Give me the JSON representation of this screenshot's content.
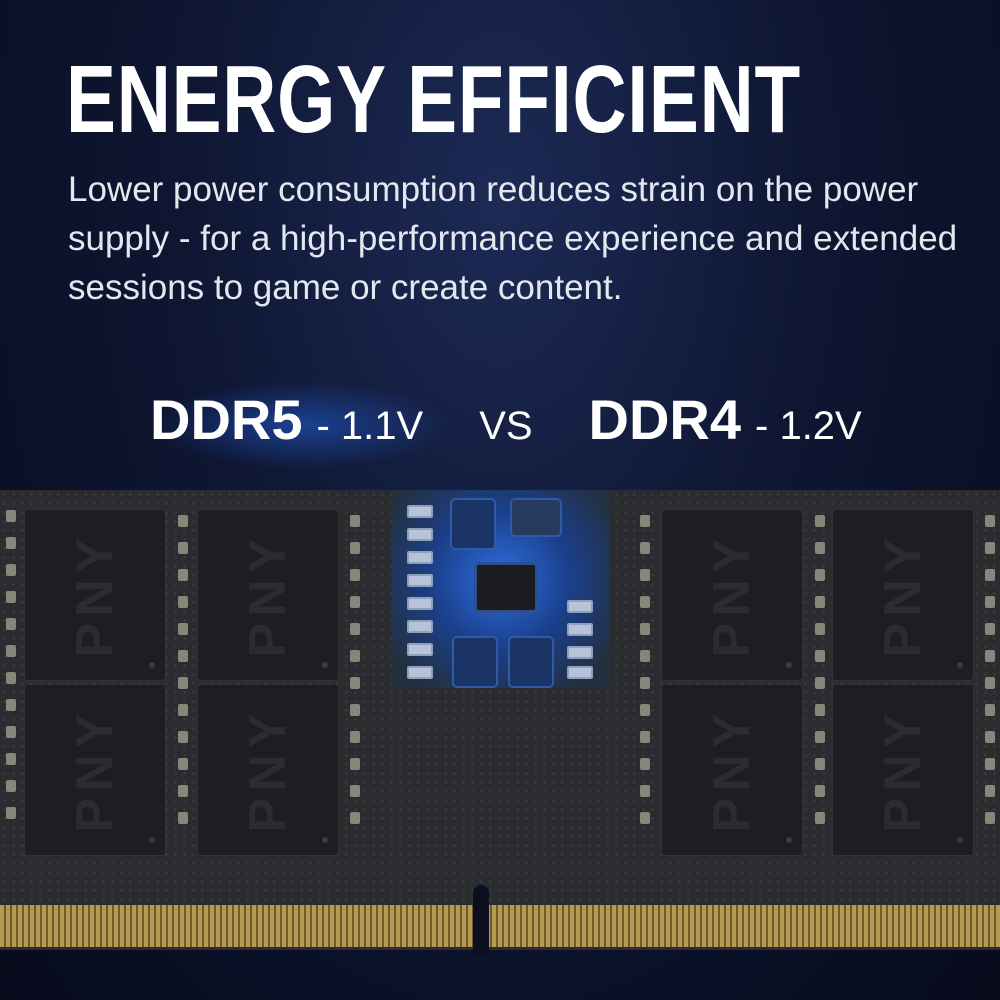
{
  "headline": "ENERGY EFFICIENT",
  "description": "Lower power consumption reduces strain on the power supply - for a high-performance experience and extended sessions to game or create content.",
  "comparison": {
    "left_name": "DDR5",
    "left_voltage": "- 1.1V",
    "separator": "VS",
    "right_name": "DDR4",
    "right_voltage": "- 1.2V"
  },
  "module": {
    "chip_logo": "PNY",
    "highlight_color": "#2d6fe0"
  }
}
